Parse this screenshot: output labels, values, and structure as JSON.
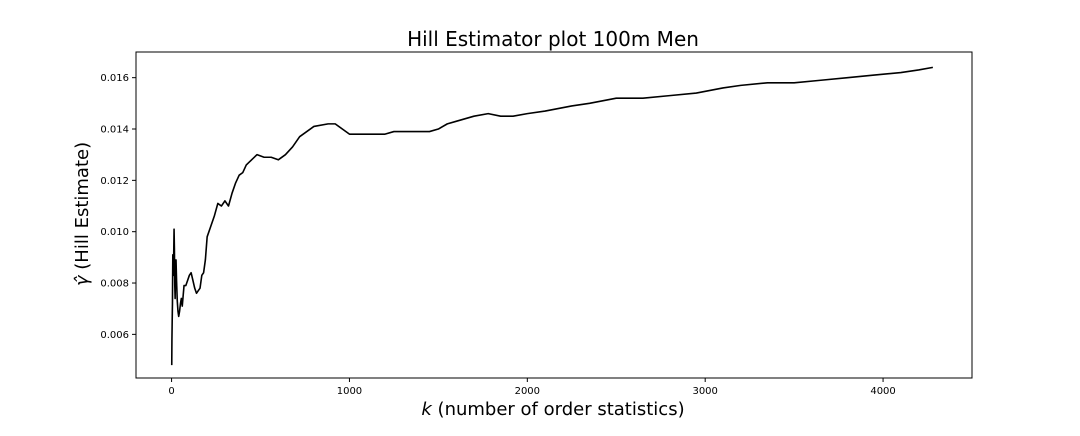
{
  "chart_data": {
    "type": "line",
    "title": "Hill Estimator plot 100m Men",
    "xlabel_symbol": "k",
    "xlabel_rest": " (number of order statistics)",
    "ylabel_symbol": "γ̂",
    "ylabel_rest": " (Hill Estimate)",
    "xlim": [
      -200,
      4500
    ],
    "ylim": [
      0.0043,
      0.017
    ],
    "xticks": [
      0,
      1000,
      2000,
      3000,
      4000
    ],
    "xtick_labels": [
      "0",
      "1000",
      "2000",
      "3000",
      "4000"
    ],
    "yticks": [
      0.006,
      0.008,
      0.01,
      0.012,
      0.014,
      0.016
    ],
    "ytick_labels": [
      "0.006",
      "0.008",
      "0.010",
      "0.012",
      "0.014",
      "0.016"
    ],
    "grid": false,
    "series": [
      {
        "color": "#000000",
        "x": [
          1,
          2,
          3,
          4,
          5,
          6,
          7,
          8,
          10,
          12,
          14,
          16,
          18,
          20,
          22,
          25,
          28,
          32,
          36,
          40,
          45,
          50,
          55,
          60,
          65,
          70,
          80,
          90,
          100,
          110,
          120,
          130,
          140,
          150,
          160,
          170,
          180,
          190,
          200,
          220,
          240,
          260,
          280,
          300,
          320,
          340,
          360,
          380,
          400,
          420,
          450,
          480,
          520,
          560,
          600,
          640,
          680,
          720,
          800,
          880,
          920,
          960,
          1000,
          1050,
          1100,
          1150,
          1200,
          1250,
          1300,
          1350,
          1400,
          1450,
          1500,
          1550,
          1600,
          1700,
          1780,
          1850,
          1920,
          2000,
          2100,
          2250,
          2350,
          2500,
          2650,
          2800,
          2950,
          3100,
          3200,
          3350,
          3500,
          3650,
          3800,
          3950,
          4100,
          4200,
          4280
        ],
        "y": [
          0.0048,
          0.0058,
          0.0063,
          0.0068,
          0.0072,
          0.0083,
          0.0091,
          0.0088,
          0.0083,
          0.0091,
          0.0101,
          0.0093,
          0.0079,
          0.0074,
          0.0086,
          0.0089,
          0.0081,
          0.0073,
          0.0069,
          0.0067,
          0.0069,
          0.0072,
          0.0074,
          0.0071,
          0.0075,
          0.0079,
          0.0079,
          0.0081,
          0.0083,
          0.0084,
          0.0081,
          0.0078,
          0.0076,
          0.0077,
          0.0078,
          0.0083,
          0.0084,
          0.0089,
          0.0098,
          0.0102,
          0.0106,
          0.0111,
          0.011,
          0.0112,
          0.011,
          0.0115,
          0.0119,
          0.0122,
          0.0123,
          0.0126,
          0.0128,
          0.013,
          0.0129,
          0.0129,
          0.0128,
          0.013,
          0.0133,
          0.0137,
          0.0141,
          0.0142,
          0.0142,
          0.014,
          0.0138,
          0.0138,
          0.0138,
          0.0138,
          0.0138,
          0.0139,
          0.0139,
          0.0139,
          0.0139,
          0.0139,
          0.014,
          0.0142,
          0.0143,
          0.0145,
          0.0146,
          0.0145,
          0.0145,
          0.0146,
          0.0147,
          0.0149,
          0.015,
          0.0152,
          0.0152,
          0.0153,
          0.0154,
          0.0156,
          0.0157,
          0.0158,
          0.0158,
          0.0159,
          0.016,
          0.0161,
          0.0162,
          0.0163,
          0.0164
        ]
      }
    ]
  }
}
